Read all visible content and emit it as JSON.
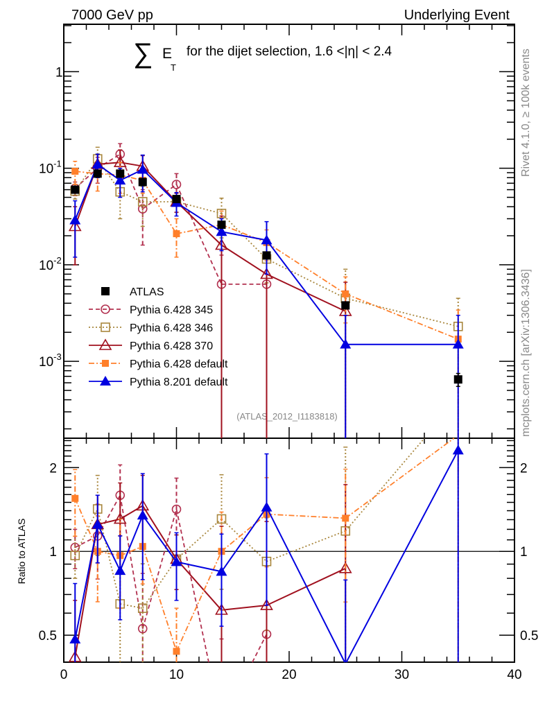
{
  "header": {
    "left": "7000 GeV pp",
    "right": "Underlying Event"
  },
  "side_labels": {
    "rivet": "Rivet 4.1.0, ≥ 100k events",
    "mcplots": "mcplots.cern.ch [arXiv:1306.3436]"
  },
  "watermark": "(ATLAS_2012_I1183818)",
  "chart_data": [
    {
      "type": "scatter",
      "title_parts": {
        "sum": "∑",
        "e": "E",
        "sub": "T",
        "rest": "for the dijet selection, 1.6 <|η| < 2.4"
      },
      "xlim": [
        0,
        40
      ],
      "ylim": [
        0.00016,
        3.1
      ],
      "yscale": "log",
      "ytick_labels": [
        {
          "v": 1,
          "label": "1"
        },
        {
          "v": 0.1,
          "label": "10",
          "exp": "-1"
        },
        {
          "v": 0.01,
          "label": "10",
          "exp": "-2"
        },
        {
          "v": 0.001,
          "label": "10",
          "exp": "-3"
        }
      ],
      "x": [
        1,
        3,
        5,
        7,
        10,
        14,
        18,
        25,
        35
      ],
      "legend_position": "middle-left",
      "series": [
        {
          "name": "ATLAS",
          "color": "#000000",
          "marker": "filled-square",
          "line": "none",
          "values": [
            0.06,
            0.088,
            0.088,
            0.072,
            0.048,
            0.026,
            0.0125,
            0.0038,
            0.00065
          ],
          "yerr": [
            0.004,
            0.005,
            0.005,
            0.004,
            0.003,
            0.002,
            0.001,
            0.0003,
            0.0001
          ]
        },
        {
          "name": "Pythia 6.428 345",
          "color": "#b2304f",
          "marker": "open-circle",
          "line": "dashed",
          "values": [
            0.062,
            0.1,
            0.14,
            0.038,
            0.068,
            0.0063,
            0.0063,
            null,
            null
          ],
          "yerr": [
            0.01,
            0.03,
            0.04,
            0.022,
            0.02,
            0.0063,
            0.0062,
            null,
            null
          ]
        },
        {
          "name": "Pythia 6.428 346",
          "color": "#a8863c",
          "marker": "open-square",
          "line": "dotted",
          "values": [
            0.058,
            0.125,
            0.057,
            0.045,
            0.045,
            0.034,
            0.0115,
            0.0045,
            0.0023
          ],
          "yerr": [
            0.01,
            0.04,
            0.027,
            0.02,
            0.01,
            0.015,
            0.005,
            0.0045,
            0.0022
          ]
        },
        {
          "name": "Pythia 6.428 370",
          "color": "#a0101e",
          "marker": "open-triangle",
          "line": "solid",
          "values": [
            0.025,
            0.11,
            0.115,
            0.105,
            0.045,
            0.016,
            0.008,
            0.0033,
            null
          ],
          "yerr": [
            0.015,
            0.03,
            0.04,
            0.03,
            0.01,
            0.016,
            0.008,
            0.0033,
            null
          ]
        },
        {
          "name": "Pythia 6.428 default",
          "color": "#ff7f2a",
          "marker": "filled-square-small",
          "line": "dashdot",
          "values": [
            0.093,
            0.088,
            0.085,
            0.075,
            0.021,
            0.026,
            0.017,
            0.005,
            0.0017
          ],
          "yerr": [
            0.025,
            0.03,
            0.03,
            0.02,
            0.009,
            0.01,
            0.006,
            0.0025,
            0.0017
          ]
        },
        {
          "name": "Pythia 8.201 default",
          "color": "#0000e0",
          "marker": "filled-triangle",
          "line": "solid",
          "values": [
            0.029,
            0.11,
            0.075,
            0.097,
            0.044,
            0.022,
            0.018,
            0.0015,
            0.0015
          ],
          "yerr": [
            0.017,
            0.03,
            0.025,
            0.04,
            0.012,
            0.008,
            0.01,
            0.0015,
            0.0015
          ]
        }
      ]
    },
    {
      "type": "scatter",
      "ylabel": "Ratio to ATLAS",
      "xlim": [
        0,
        40
      ],
      "ylim": [
        0.4,
        2.55
      ],
      "yscale": "log",
      "xtick_labels": [
        "0",
        "10",
        "20",
        "30",
        "40"
      ],
      "ytick_labels": [
        "0.5",
        "1",
        "2"
      ],
      "reference_line": 1
    }
  ]
}
